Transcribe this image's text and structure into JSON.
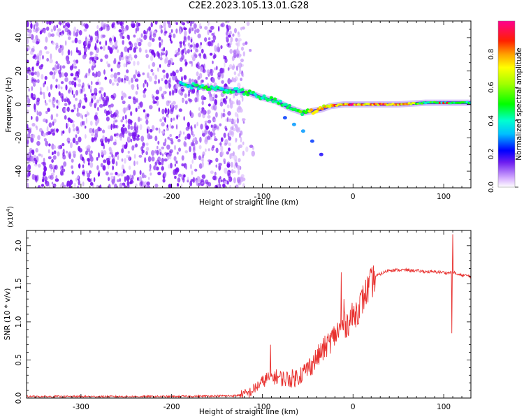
{
  "title": "C2E2.2023.105.13.01.G28",
  "chart_data": [
    {
      "type": "heatmap",
      "panel": "spectrogram",
      "xlabel": "Height of straight line (km)",
      "ylabel": "Frequency (Hz)",
      "xlim": [
        -360,
        130
      ],
      "ylim": [
        -50,
        50
      ],
      "xticks": [
        -300,
        -200,
        -100,
        0,
        100
      ],
      "xtick_labels": [
        "-300",
        "-200",
        "-100",
        "0",
        "100"
      ],
      "yticks": [
        -40,
        -20,
        0,
        20,
        40
      ],
      "ytick_labels": [
        "-40",
        "-20",
        "0",
        "20",
        "40"
      ],
      "colorbar": {
        "label": "Normalized spectral amplitude",
        "range": [
          0,
          1
        ],
        "ticks": [
          0.0,
          0.2,
          0.4,
          0.6,
          0.8
        ],
        "tick_labels": [
          "0.0",
          "0.2",
          "0.4",
          "0.6",
          "0.8"
        ]
      },
      "noise_region": {
        "x_start": -360,
        "x_end": -120,
        "amplitude": 0.15
      },
      "signal_track": {
        "x": [
          -190,
          -175,
          -160,
          -145,
          -130,
          -115,
          -100,
          -85,
          -70,
          -55,
          -45,
          -35,
          -25,
          -10,
          0,
          20,
          50,
          80,
          110,
          130
        ],
        "frequency": [
          12,
          11,
          10,
          9,
          8,
          7,
          4,
          2,
          -2,
          -5,
          -4,
          -3,
          -1,
          0,
          0,
          0,
          0,
          1,
          1,
          1
        ],
        "amplitude": [
          0.4,
          0.45,
          0.5,
          0.45,
          0.5,
          0.5,
          0.45,
          0.45,
          0.5,
          0.55,
          0.75,
          0.8,
          0.85,
          0.9,
          0.9,
          0.85,
          0.9,
          0.5,
          0.55,
          0.45
        ]
      },
      "branch_track": {
        "x": [
          -75,
          -65,
          -55,
          -45,
          -35
        ],
        "frequency": [
          -8,
          -12,
          -16,
          -22,
          -30
        ],
        "amplitude": [
          0.25,
          0.3,
          0.3,
          0.25,
          0.2
        ]
      }
    },
    {
      "type": "line",
      "panel": "snr",
      "xlabel": "Height of straight line (km)",
      "ylabel": "SNR (10 * v/v)",
      "scale_label": "(x10",
      "scale_exponent": "4",
      "scale_close": ")",
      "xlim": [
        -360,
        130
      ],
      "ylim": [
        0,
        2.2
      ],
      "xticks": [
        -300,
        -200,
        -100,
        0,
        100
      ],
      "xtick_labels": [
        "-300",
        "-200",
        "-100",
        "0",
        "100"
      ],
      "yticks": [
        0.0,
        0.5,
        1.0,
        1.5,
        2.0
      ],
      "ytick_labels": [
        "0.0",
        "0.5",
        "1.0",
        "1.5",
        "2.0"
      ],
      "series": [
        {
          "name": "SNR",
          "color": "#e8302e",
          "x": [
            -360,
            -300,
            -200,
            -130,
            -115,
            -105,
            -95,
            -85,
            -75,
            -65,
            -55,
            -45,
            -35,
            -25,
            -15,
            -5,
            5,
            15,
            25,
            40,
            60,
            80,
            100,
            105,
            110,
            115,
            130
          ],
          "y": [
            0.02,
            0.02,
            0.02,
            0.03,
            0.06,
            0.16,
            0.26,
            0.28,
            0.25,
            0.26,
            0.33,
            0.45,
            0.6,
            0.75,
            0.9,
            1.0,
            1.15,
            1.4,
            1.6,
            1.68,
            1.68,
            1.66,
            1.65,
            1.64,
            1.66,
            1.62,
            1.6
          ]
        }
      ],
      "features": [
        {
          "x": -13,
          "y": 1.65,
          "label": ""
        },
        {
          "x": -10,
          "y": 1.3,
          "label": ""
        },
        {
          "x": -91,
          "y": 0.7,
          "label": ""
        },
        {
          "x": 110,
          "y": 2.15,
          "label": ""
        },
        {
          "x": 109,
          "y": 0.85,
          "label": ""
        }
      ]
    }
  ]
}
